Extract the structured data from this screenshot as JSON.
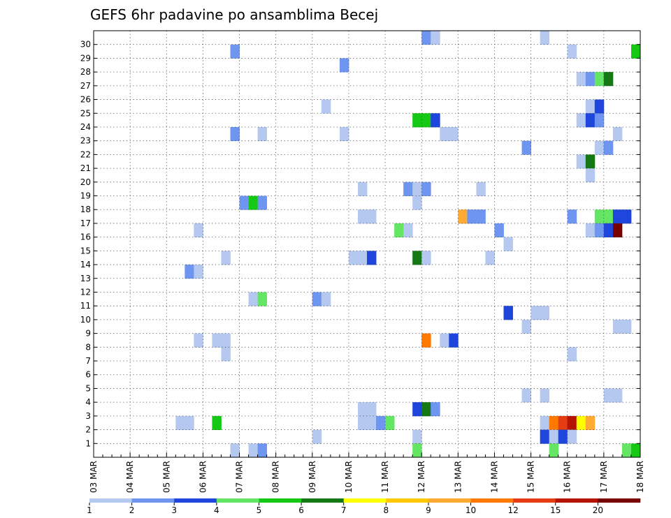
{
  "chart_data": {
    "type": "heatmap",
    "title": "GEFS 6hr padavine po ansamblima Becej",
    "xlabel": "",
    "ylabel": "",
    "x_tick_labels": [
      "03 MAR",
      "04 MAR",
      "05 MAR",
      "06 MAR",
      "07 MAR",
      "08 MAR",
      "09 MAR",
      "10 MAR",
      "11 MAR",
      "12 MAR",
      "13 MAR",
      "14 MAR",
      "15 MAR",
      "16 MAR",
      "17 MAR",
      "18 MAR"
    ],
    "y_tick_labels": [
      "1",
      "2",
      "3",
      "4",
      "5",
      "6",
      "7",
      "8",
      "9",
      "10",
      "11",
      "12",
      "13",
      "14",
      "15",
      "16",
      "17",
      "18",
      "19",
      "20",
      "21",
      "22",
      "23",
      "24",
      "25",
      "26",
      "27",
      "28",
      "29",
      "30"
    ],
    "time_steps_per_day": 4,
    "members": 30,
    "grid": true,
    "legend": {
      "placement": "bottom",
      "levels": [
        "1",
        "2",
        "3",
        "4",
        "5",
        "6",
        "7",
        "8",
        "9",
        "10",
        "12",
        "15",
        "20"
      ],
      "colors": [
        "#b4c8f0",
        "#6e96f0",
        "#1e46dc",
        "#64e664",
        "#14c814",
        "#147814",
        "#ffff00",
        "#ffc800",
        "#ffaa32",
        "#ff7800",
        "#e63c14",
        "#b41400",
        "#780000"
      ]
    },
    "cells": [
      {
        "member": 30,
        "t": 49,
        "c": 0
      },
      {
        "member": 30,
        "t": 36,
        "c": 1
      },
      {
        "member": 30,
        "t": 37,
        "c": 0
      },
      {
        "member": 29,
        "t": 15,
        "c": 1
      },
      {
        "member": 29,
        "t": 52,
        "c": 0
      },
      {
        "member": 29,
        "t": 59,
        "c": 4
      },
      {
        "member": 28,
        "t": 27,
        "c": 1
      },
      {
        "member": 27,
        "t": 53,
        "c": 0
      },
      {
        "member": 27,
        "t": 54,
        "c": 1
      },
      {
        "member": 27,
        "t": 55,
        "c": 3
      },
      {
        "member": 27,
        "t": 56,
        "c": 5
      },
      {
        "member": 25,
        "t": 25,
        "c": 0
      },
      {
        "member": 25,
        "t": 54,
        "c": 0
      },
      {
        "member": 25,
        "t": 55,
        "c": 2
      },
      {
        "member": 24,
        "t": 35,
        "c": 4
      },
      {
        "member": 24,
        "t": 36,
        "c": 4
      },
      {
        "member": 24,
        "t": 37,
        "c": 2
      },
      {
        "member": 24,
        "t": 53,
        "c": 0
      },
      {
        "member": 24,
        "t": 54,
        "c": 2
      },
      {
        "member": 24,
        "t": 55,
        "c": 1
      },
      {
        "member": 23,
        "t": 15,
        "c": 1
      },
      {
        "member": 23,
        "t": 18,
        "c": 0
      },
      {
        "member": 23,
        "t": 27,
        "c": 0
      },
      {
        "member": 23,
        "t": 38,
        "c": 0
      },
      {
        "member": 23,
        "t": 39,
        "c": 0
      },
      {
        "member": 23,
        "t": 57,
        "c": 0
      },
      {
        "member": 22,
        "t": 47,
        "c": 1
      },
      {
        "member": 22,
        "t": 55,
        "c": 0
      },
      {
        "member": 22,
        "t": 56,
        "c": 1
      },
      {
        "member": 21,
        "t": 53,
        "c": 0
      },
      {
        "member": 21,
        "t": 54,
        "c": 5
      },
      {
        "member": 20,
        "t": 54,
        "c": 0
      },
      {
        "member": 19,
        "t": 29,
        "c": 0
      },
      {
        "member": 19,
        "t": 34,
        "c": 1
      },
      {
        "member": 19,
        "t": 35,
        "c": 0
      },
      {
        "member": 19,
        "t": 36,
        "c": 1
      },
      {
        "member": 19,
        "t": 42,
        "c": 0
      },
      {
        "member": 18,
        "t": 16,
        "c": 1
      },
      {
        "member": 18,
        "t": 17,
        "c": 4
      },
      {
        "member": 18,
        "t": 18,
        "c": 1
      },
      {
        "member": 18,
        "t": 35,
        "c": 0
      },
      {
        "member": 17,
        "t": 29,
        "c": 0
      },
      {
        "member": 17,
        "t": 30,
        "c": 0
      },
      {
        "member": 17,
        "t": 40,
        "c": 8
      },
      {
        "member": 17,
        "t": 41,
        "c": 1
      },
      {
        "member": 17,
        "t": 42,
        "c": 1
      },
      {
        "member": 17,
        "t": 52,
        "c": 1
      },
      {
        "member": 17,
        "t": 55,
        "c": 3
      },
      {
        "member": 17,
        "t": 56,
        "c": 3
      },
      {
        "member": 17,
        "t": 57,
        "c": 2
      },
      {
        "member": 17,
        "t": 58,
        "c": 2
      },
      {
        "member": 16,
        "t": 11,
        "c": 0
      },
      {
        "member": 16,
        "t": 33,
        "c": 3
      },
      {
        "member": 16,
        "t": 34,
        "c": 0
      },
      {
        "member": 16,
        "t": 44,
        "c": 1
      },
      {
        "member": 16,
        "t": 54,
        "c": 0
      },
      {
        "member": 16,
        "t": 55,
        "c": 1
      },
      {
        "member": 16,
        "t": 56,
        "c": 2
      },
      {
        "member": 16,
        "t": 57,
        "c": 12
      },
      {
        "member": 15,
        "t": 45,
        "c": 0
      },
      {
        "member": 14,
        "t": 14,
        "c": 0
      },
      {
        "member": 14,
        "t": 28,
        "c": 0
      },
      {
        "member": 14,
        "t": 29,
        "c": 0
      },
      {
        "member": 14,
        "t": 30,
        "c": 2
      },
      {
        "member": 14,
        "t": 35,
        "c": 5
      },
      {
        "member": 14,
        "t": 36,
        "c": 0
      },
      {
        "member": 14,
        "t": 43,
        "c": 0
      },
      {
        "member": 13,
        "t": 10,
        "c": 1
      },
      {
        "member": 13,
        "t": 11,
        "c": 0
      },
      {
        "member": 11,
        "t": 17,
        "c": 0
      },
      {
        "member": 11,
        "t": 18,
        "c": 3
      },
      {
        "member": 11,
        "t": 24,
        "c": 1
      },
      {
        "member": 11,
        "t": 25,
        "c": 0
      },
      {
        "member": 10,
        "t": 45,
        "c": 2
      },
      {
        "member": 10,
        "t": 48,
        "c": 0
      },
      {
        "member": 10,
        "t": 49,
        "c": 0
      },
      {
        "member": 9,
        "t": 47,
        "c": 0
      },
      {
        "member": 9,
        "t": 57,
        "c": 0
      },
      {
        "member": 9,
        "t": 58,
        "c": 0
      },
      {
        "member": 8,
        "t": 11,
        "c": 0
      },
      {
        "member": 8,
        "t": 13,
        "c": 0
      },
      {
        "member": 8,
        "t": 14,
        "c": 0
      },
      {
        "member": 8,
        "t": 36,
        "c": 9
      },
      {
        "member": 8,
        "t": 38,
        "c": 0
      },
      {
        "member": 8,
        "t": 39,
        "c": 2
      },
      {
        "member": 7,
        "t": 14,
        "c": 0
      },
      {
        "member": 7,
        "t": 52,
        "c": 0
      },
      {
        "member": 4,
        "t": 47,
        "c": 0
      },
      {
        "member": 4,
        "t": 49,
        "c": 0
      },
      {
        "member": 4,
        "t": 56,
        "c": 0
      },
      {
        "member": 4,
        "t": 57,
        "c": 0
      },
      {
        "member": 3,
        "t": 29,
        "c": 0
      },
      {
        "member": 3,
        "t": 30,
        "c": 0
      },
      {
        "member": 3,
        "t": 35,
        "c": 2
      },
      {
        "member": 3,
        "t": 36,
        "c": 5
      },
      {
        "member": 3,
        "t": 37,
        "c": 1
      },
      {
        "member": 2,
        "t": 9,
        "c": 0
      },
      {
        "member": 2,
        "t": 10,
        "c": 0
      },
      {
        "member": 2,
        "t": 13,
        "c": 4
      },
      {
        "member": 2,
        "t": 29,
        "c": 0
      },
      {
        "member": 2,
        "t": 30,
        "c": 0
      },
      {
        "member": 2,
        "t": 31,
        "c": 1
      },
      {
        "member": 2,
        "t": 32,
        "c": 3
      },
      {
        "member": 2,
        "t": 49,
        "c": 0
      },
      {
        "member": 2,
        "t": 50,
        "c": 9
      },
      {
        "member": 2,
        "t": 51,
        "c": 10
      },
      {
        "member": 2,
        "t": 52,
        "c": 11
      },
      {
        "member": 2,
        "t": 53,
        "c": 6
      },
      {
        "member": 2,
        "t": 54,
        "c": 8
      },
      {
        "member": 1,
        "t": 24,
        "c": 0
      },
      {
        "member": 1,
        "t": 35,
        "c": 0
      },
      {
        "member": 1,
        "t": 49,
        "c": 2
      },
      {
        "member": 1,
        "t": 50,
        "c": 0
      },
      {
        "member": 1,
        "t": 51,
        "c": 2
      },
      {
        "member": 1,
        "t": 52,
        "c": 0
      },
      {
        "member": 0,
        "t": 15,
        "c": 0
      },
      {
        "member": 0,
        "t": 17,
        "c": 0
      },
      {
        "member": 0,
        "t": 18,
        "c": 1
      },
      {
        "member": 0,
        "t": 35,
        "c": 3
      },
      {
        "member": 0,
        "t": 50,
        "c": 3
      },
      {
        "member": 0,
        "t": 58,
        "c": 3
      },
      {
        "member": 0,
        "t": 59,
        "c": 4
      }
    ]
  }
}
